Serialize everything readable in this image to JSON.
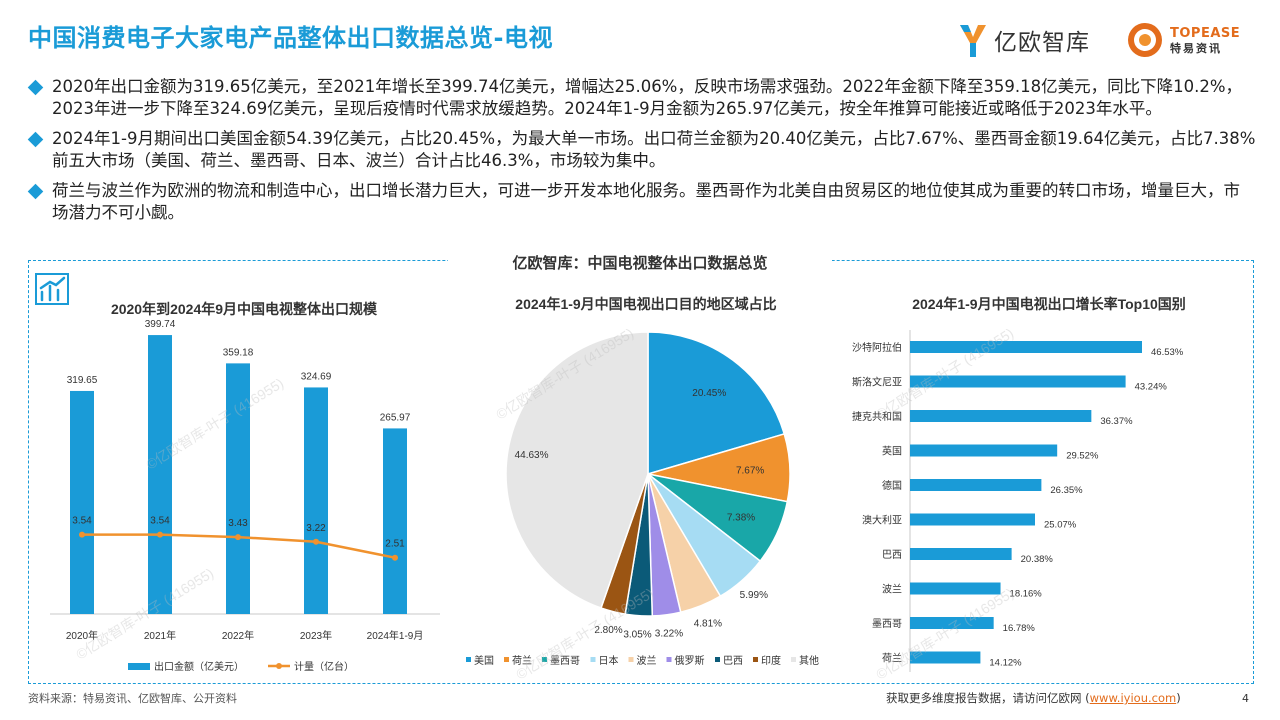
{
  "header": {
    "title": "中国消费电子大家电产品整体出口数据总览-电视",
    "logo_yiou": "亿欧智库",
    "logo_topease_en": "TOPEASE",
    "logo_topease_cn": "特易资讯"
  },
  "bullets": [
    "2020年出口金额为319.65亿美元，至2021年增长至399.74亿美元，增幅达25.06%，反映市场需求强劲。2022年金额下降至359.18亿美元，同比下降10.2%，2023年进一步下降至324.69亿美元，呈现后疫情时代需求放缓趋势。2024年1-9月金额为265.97亿美元，按全年推算可能接近或略低于2023年水平。",
    "2024年1-9月期间出口美国金额54.39亿美元，占比20.45%，为最大单一市场。出口荷兰金额为20.40亿美元，占比7.67%、墨西哥金额19.64亿美元，占比7.38%前五大市场（美国、荷兰、墨西哥、日本、波兰）合计占比46.3%，市场较为集中。",
    "荷兰与波兰作为欧洲的物流和制造中心，出口增长潜力巨大，可进一步开发本地化服务。墨西哥作为北美自由贸易区的地位使其成为重要的转口市场，增量巨大，市场潜力不可小觑。"
  ],
  "panel_title": "亿欧智库：中国电视整体出口数据总览",
  "watermark": "©亿欧智库-叶子 (416955)",
  "colors": {
    "accent": "#1a9bd7",
    "bar": "#1a9bd7",
    "line": "#f0922e",
    "orange": "#e36c1c"
  },
  "chart_data": [
    {
      "type": "bar",
      "title": "2020年到2024年9月中国电视整体出口规模",
      "categories": [
        "2020年",
        "2021年",
        "2022年",
        "2023年",
        "2024年1-9月"
      ],
      "series": [
        {
          "name": "出口金额（亿美元）",
          "kind": "bar",
          "values": [
            319.65,
            399.74,
            359.18,
            324.69,
            265.97
          ],
          "labels": [
            "319.65",
            "399.74",
            "359.18",
            "324.69",
            "265.97"
          ]
        },
        {
          "name": "计量（亿台）",
          "kind": "line",
          "values": [
            3.54,
            3.54,
            3.43,
            3.22,
            2.51
          ],
          "labels": [
            "3.54",
            "3.54",
            "3.43",
            "3.22",
            "2.51"
          ]
        }
      ],
      "ylim": [
        0,
        450
      ],
      "y2lim": [
        0,
        14
      ],
      "legend": "bottom"
    },
    {
      "type": "pie",
      "title": "2024年1-9月中国电视出口目的地区域占比",
      "categories": [
        "美国",
        "荷兰",
        "墨西哥",
        "日本",
        "波兰",
        "俄罗斯",
        "巴西",
        "印度",
        "其他"
      ],
      "values": [
        20.45,
        7.67,
        7.38,
        5.99,
        4.81,
        3.22,
        3.05,
        2.8,
        44.63
      ],
      "labels": [
        "20.45%",
        "7.67%",
        "7.38%",
        "5.99%",
        "4.81%",
        "3.22%",
        "3.05%",
        "2.80%",
        "44.63%"
      ],
      "colors": [
        "#1a9bd7",
        "#f0922e",
        "#19a7a8",
        "#a6dcf3",
        "#f6d1a8",
        "#9f8de8",
        "#0b5a78",
        "#9b5513",
        "#e6e6e6"
      ],
      "legend": "bottom"
    },
    {
      "type": "bar",
      "orientation": "horizontal",
      "title": "2024年1-9月中国电视出口增长率Top10国别",
      "categories": [
        "沙特阿拉伯",
        "斯洛文尼亚",
        "捷克共和国",
        "英国",
        "德国",
        "澳大利亚",
        "巴西",
        "波兰",
        "墨西哥",
        "荷兰"
      ],
      "values": [
        46.53,
        43.24,
        36.37,
        29.52,
        26.35,
        25.07,
        20.38,
        18.16,
        16.78,
        14.12
      ],
      "labels": [
        "46.53%",
        "43.24%",
        "36.37%",
        "29.52%",
        "26.35%",
        "25.07%",
        "20.38%",
        "18.16%",
        "16.78%",
        "14.12%"
      ],
      "xlim": [
        0,
        50
      ]
    }
  ],
  "footer": {
    "source": "资料来源：特易资讯、亿欧智库、公开资料",
    "more_prefix": "获取更多维度报告数据，请访问亿欧网 (",
    "more_link": "www.iyiou.com",
    "more_suffix": ")",
    "page": "4"
  }
}
